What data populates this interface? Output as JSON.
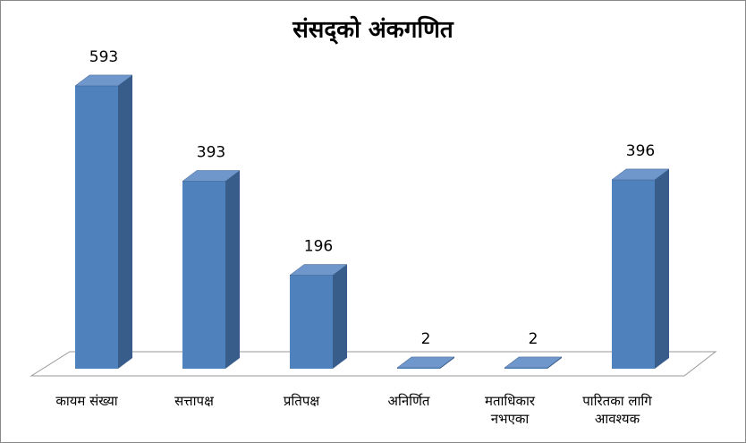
{
  "chart_data": {
    "type": "bar3d",
    "title": "संसद्को अंकगणित",
    "categories": [
      "कायम संख्या",
      "सत्तापक्ष",
      "प्रतिपक्ष",
      "अनिर्णित",
      "मताधिकार नभएका",
      "पारितका लागि आवश्यक"
    ],
    "values": [
      593,
      393,
      196,
      2,
      2,
      396
    ],
    "color": "#4f81bd"
  }
}
